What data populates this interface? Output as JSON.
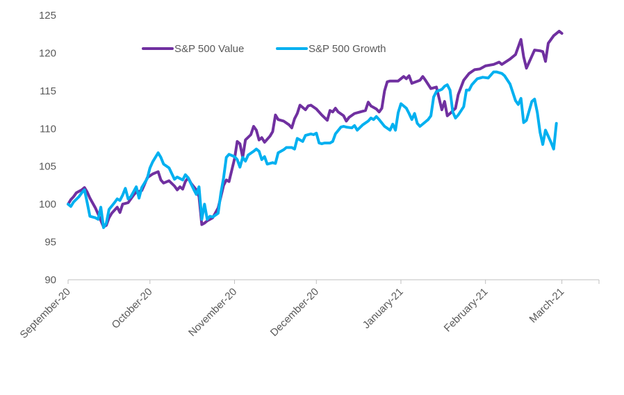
{
  "chart_data": {
    "type": "line",
    "title": "",
    "xlabel": "",
    "ylabel": "",
    "ylim": [
      90,
      125
    ],
    "yticks": [
      90,
      95,
      100,
      105,
      110,
      115,
      120,
      125
    ],
    "grid": false,
    "legend_position": "top-center",
    "x_domain": [
      "2020-09-01",
      "2021-03-09"
    ],
    "xtick_labels": [
      {
        "date": "2020-09-01",
        "label": "September-20"
      },
      {
        "date": "2020-10-01",
        "label": "October-20"
      },
      {
        "date": "2020-11-01",
        "label": "November-20"
      },
      {
        "date": "2020-12-01",
        "label": "December-20"
      },
      {
        "date": "2021-01-01",
        "label": "January-21"
      },
      {
        "date": "2021-02-01",
        "label": "February-21"
      },
      {
        "date": "2021-03-01",
        "label": "March-21"
      }
    ],
    "series": [
      {
        "name": "S&P 500 Value",
        "color": "#7030a0",
        "points": [
          [
            "2020-09-01",
            100
          ],
          [
            "2020-09-02",
            100.6
          ],
          [
            "2020-09-03",
            101.0
          ],
          [
            "2020-09-04",
            101.5
          ],
          [
            "2020-09-06",
            101.9
          ],
          [
            "2020-09-07",
            102.2
          ],
          [
            "2020-09-08",
            101.6
          ],
          [
            "2020-09-09",
            100.8
          ],
          [
            "2020-09-11",
            99.5
          ],
          [
            "2020-09-12",
            98.7
          ],
          [
            "2020-09-14",
            97.0
          ],
          [
            "2020-09-15",
            97.2
          ],
          [
            "2020-09-16",
            98.2
          ],
          [
            "2020-09-17",
            98.8
          ],
          [
            "2020-09-19",
            99.6
          ],
          [
            "2020-09-20",
            98.9
          ],
          [
            "2020-09-21",
            100.0
          ],
          [
            "2020-09-23",
            100.2
          ],
          [
            "2020-09-25",
            101.2
          ],
          [
            "2020-09-26",
            101.6
          ],
          [
            "2020-09-28",
            101.8
          ],
          [
            "2020-09-29",
            102.6
          ],
          [
            "2020-09-30",
            103.5
          ],
          [
            "2020-10-02",
            104.0
          ],
          [
            "2020-10-04",
            104.3
          ],
          [
            "2020-10-05",
            103.2
          ],
          [
            "2020-10-06",
            102.8
          ],
          [
            "2020-10-08",
            103.1
          ],
          [
            "2020-10-10",
            102.4
          ],
          [
            "2020-10-11",
            101.9
          ],
          [
            "2020-10-12",
            102.3
          ],
          [
            "2020-10-13",
            102.0
          ],
          [
            "2020-10-14",
            103.0
          ],
          [
            "2020-10-15",
            103.5
          ],
          [
            "2020-10-16",
            102.8
          ],
          [
            "2020-10-18",
            101.9
          ],
          [
            "2020-10-19",
            101.0
          ],
          [
            "2020-10-20",
            97.3
          ],
          [
            "2020-10-21",
            97.5
          ],
          [
            "2020-10-22",
            97.8
          ],
          [
            "2020-10-24",
            98.2
          ],
          [
            "2020-10-26",
            99.5
          ],
          [
            "2020-10-27",
            101.0
          ],
          [
            "2020-10-28",
            102.5
          ],
          [
            "2020-10-29",
            103.2
          ],
          [
            "2020-10-30",
            103.0
          ],
          [
            "2020-11-01",
            106.0
          ],
          [
            "2020-11-02",
            108.3
          ],
          [
            "2020-11-03",
            108.0
          ],
          [
            "2020-11-04",
            106.2
          ],
          [
            "2020-11-05",
            108.5
          ],
          [
            "2020-11-07",
            109.2
          ],
          [
            "2020-11-08",
            110.3
          ],
          [
            "2020-11-09",
            109.8
          ],
          [
            "2020-11-10",
            108.5
          ],
          [
            "2020-11-11",
            108.8
          ],
          [
            "2020-11-12",
            108.2
          ],
          [
            "2020-11-14",
            109.0
          ],
          [
            "2020-11-15",
            109.6
          ],
          [
            "2020-11-16",
            111.8
          ],
          [
            "2020-11-17",
            111.2
          ],
          [
            "2020-11-19",
            111.0
          ],
          [
            "2020-11-21",
            110.5
          ],
          [
            "2020-11-22",
            110.1
          ],
          [
            "2020-11-23",
            111.3
          ],
          [
            "2020-11-24",
            112.0
          ],
          [
            "2020-11-25",
            113.1
          ],
          [
            "2020-11-27",
            112.5
          ],
          [
            "2020-11-28",
            113.0
          ],
          [
            "2020-11-29",
            113.1
          ],
          [
            "2020-12-01",
            112.6
          ],
          [
            "2020-12-03",
            111.8
          ],
          [
            "2020-12-05",
            111.1
          ],
          [
            "2020-12-06",
            112.4
          ],
          [
            "2020-12-07",
            112.2
          ],
          [
            "2020-12-08",
            112.7
          ],
          [
            "2020-12-09",
            112.2
          ],
          [
            "2020-12-11",
            111.7
          ],
          [
            "2020-12-12",
            111.0
          ],
          [
            "2020-12-13",
            111.5
          ],
          [
            "2020-12-15",
            112.0
          ],
          [
            "2020-12-17",
            112.2
          ],
          [
            "2020-12-19",
            112.4
          ],
          [
            "2020-12-20",
            113.5
          ],
          [
            "2020-12-21",
            113.0
          ],
          [
            "2020-12-23",
            112.6
          ],
          [
            "2020-12-24",
            112.2
          ],
          [
            "2020-12-25",
            112.7
          ],
          [
            "2020-12-26",
            115.0
          ],
          [
            "2020-12-27",
            116.2
          ],
          [
            "2020-12-28",
            116.3
          ],
          [
            "2020-12-31",
            116.3
          ],
          [
            "2021-01-02",
            116.9
          ],
          [
            "2021-01-03",
            116.6
          ],
          [
            "2021-01-04",
            117.0
          ],
          [
            "2021-01-05",
            116.0
          ],
          [
            "2021-01-08",
            116.4
          ],
          [
            "2021-01-09",
            116.9
          ],
          [
            "2021-01-10",
            116.4
          ],
          [
            "2021-01-12",
            115.3
          ],
          [
            "2021-01-14",
            115.5
          ],
          [
            "2021-01-16",
            112.5
          ],
          [
            "2021-01-17",
            113.6
          ],
          [
            "2021-01-18",
            111.7
          ],
          [
            "2021-01-19",
            112.0
          ],
          [
            "2021-01-21",
            112.7
          ],
          [
            "2021-01-22",
            114.5
          ],
          [
            "2021-01-24",
            116.4
          ],
          [
            "2021-01-26",
            117.3
          ],
          [
            "2021-01-28",
            117.8
          ],
          [
            "2021-01-30",
            117.9
          ],
          [
            "2021-02-01",
            118.3
          ],
          [
            "2021-02-04",
            118.5
          ],
          [
            "2021-02-06",
            118.8
          ],
          [
            "2021-02-07",
            118.5
          ],
          [
            "2021-02-10",
            119.2
          ],
          [
            "2021-02-12",
            119.8
          ],
          [
            "2021-02-14",
            121.8
          ],
          [
            "2021-02-15",
            119.5
          ],
          [
            "2021-02-16",
            118.0
          ],
          [
            "2021-02-17",
            118.8
          ],
          [
            "2021-02-19",
            120.4
          ],
          [
            "2021-02-21",
            120.3
          ],
          [
            "2021-02-22",
            120.2
          ],
          [
            "2021-02-23",
            118.9
          ],
          [
            "2021-02-24",
            121.3
          ],
          [
            "2021-02-26",
            122.3
          ],
          [
            "2021-02-28",
            122.9
          ],
          [
            "2021-03-01",
            122.6
          ]
        ]
      },
      {
        "name": "S&P 500 Growth",
        "color": "#00b0f0",
        "points": [
          [
            "2020-09-01",
            100
          ],
          [
            "2020-09-02",
            99.7
          ],
          [
            "2020-09-03",
            100.3
          ],
          [
            "2020-09-05",
            101.0
          ],
          [
            "2020-09-06",
            101.5
          ],
          [
            "2020-09-07",
            101.9
          ],
          [
            "2020-09-08",
            100.2
          ],
          [
            "2020-09-09",
            98.4
          ],
          [
            "2020-09-11",
            98.2
          ],
          [
            "2020-09-12",
            98.0
          ],
          [
            "2020-09-13",
            99.6
          ],
          [
            "2020-09-14",
            96.9
          ],
          [
            "2020-09-15",
            97.5
          ],
          [
            "2020-09-16",
            99.3
          ],
          [
            "2020-09-18",
            100.2
          ],
          [
            "2020-09-19",
            100.7
          ],
          [
            "2020-09-20",
            100.5
          ],
          [
            "2020-09-21",
            101.2
          ],
          [
            "2020-09-22",
            102.1
          ],
          [
            "2020-09-23",
            100.7
          ],
          [
            "2020-09-24",
            101.0
          ],
          [
            "2020-09-26",
            102.3
          ],
          [
            "2020-09-27",
            100.8
          ],
          [
            "2020-09-28",
            102.2
          ],
          [
            "2020-09-30",
            103.4
          ],
          [
            "2020-10-01",
            104.8
          ],
          [
            "2020-10-02",
            105.6
          ],
          [
            "2020-10-04",
            106.8
          ],
          [
            "2020-10-05",
            106.2
          ],
          [
            "2020-10-06",
            105.3
          ],
          [
            "2020-10-08",
            104.8
          ],
          [
            "2020-10-10",
            103.3
          ],
          [
            "2020-10-11",
            103.6
          ],
          [
            "2020-10-13",
            103.2
          ],
          [
            "2020-10-14",
            103.9
          ],
          [
            "2020-10-15",
            103.5
          ],
          [
            "2020-10-17",
            102.0
          ],
          [
            "2020-10-18",
            101.3
          ],
          [
            "2020-10-19",
            102.3
          ],
          [
            "2020-10-20",
            98.0
          ],
          [
            "2020-10-21",
            100.0
          ],
          [
            "2020-10-22",
            98.0
          ],
          [
            "2020-10-23",
            98.4
          ],
          [
            "2020-10-24",
            98.3
          ],
          [
            "2020-10-26",
            98.8
          ],
          [
            "2020-10-27",
            101.5
          ],
          [
            "2020-10-28",
            103.5
          ],
          [
            "2020-10-29",
            106.2
          ],
          [
            "2020-10-30",
            106.6
          ],
          [
            "2020-11-01",
            106.3
          ],
          [
            "2020-11-02",
            105.9
          ],
          [
            "2020-11-03",
            104.9
          ],
          [
            "2020-11-04",
            106.2
          ],
          [
            "2020-11-05",
            105.7
          ],
          [
            "2020-11-06",
            106.5
          ],
          [
            "2020-11-08",
            107.0
          ],
          [
            "2020-11-09",
            107.3
          ],
          [
            "2020-11-10",
            107.0
          ],
          [
            "2020-11-11",
            105.9
          ],
          [
            "2020-11-12",
            106.3
          ],
          [
            "2020-11-13",
            105.3
          ],
          [
            "2020-11-15",
            105.5
          ],
          [
            "2020-11-16",
            105.4
          ],
          [
            "2020-11-17",
            106.8
          ],
          [
            "2020-11-19",
            107.2
          ],
          [
            "2020-11-20",
            107.5
          ],
          [
            "2020-11-22",
            107.5
          ],
          [
            "2020-11-23",
            107.3
          ],
          [
            "2020-11-24",
            108.7
          ],
          [
            "2020-11-26",
            108.3
          ],
          [
            "2020-11-27",
            109.1
          ],
          [
            "2020-11-29",
            109.3
          ],
          [
            "2020-11-30",
            109.2
          ],
          [
            "2020-12-01",
            109.4
          ],
          [
            "2020-12-02",
            108.1
          ],
          [
            "2020-12-03",
            108.0
          ],
          [
            "2020-12-04",
            108.1
          ],
          [
            "2020-12-06",
            108.1
          ],
          [
            "2020-12-07",
            108.3
          ],
          [
            "2020-12-08",
            109.3
          ],
          [
            "2020-12-10",
            110.2
          ],
          [
            "2020-12-11",
            110.3
          ],
          [
            "2020-12-12",
            110.2
          ],
          [
            "2020-12-14",
            110.1
          ],
          [
            "2020-12-15",
            110.4
          ],
          [
            "2020-12-16",
            109.8
          ],
          [
            "2020-12-18",
            110.5
          ],
          [
            "2020-12-20",
            111.0
          ],
          [
            "2020-12-21",
            111.4
          ],
          [
            "2020-12-22",
            111.2
          ],
          [
            "2020-12-23",
            111.6
          ],
          [
            "2020-12-24",
            111.2
          ],
          [
            "2020-12-26",
            110.3
          ],
          [
            "2020-12-28",
            109.8
          ],
          [
            "2020-12-29",
            110.6
          ],
          [
            "2020-12-30",
            109.8
          ],
          [
            "2020-12-31",
            112.1
          ],
          [
            "2021-01-01",
            113.3
          ],
          [
            "2021-01-03",
            112.7
          ],
          [
            "2021-01-04",
            112.0
          ],
          [
            "2021-01-05",
            111.2
          ],
          [
            "2021-01-06",
            112.0
          ],
          [
            "2021-01-07",
            110.7
          ],
          [
            "2021-01-08",
            110.3
          ],
          [
            "2021-01-10",
            110.9
          ],
          [
            "2021-01-11",
            111.2
          ],
          [
            "2021-01-12",
            111.7
          ],
          [
            "2021-01-13",
            114.2
          ],
          [
            "2021-01-14",
            114.9
          ],
          [
            "2021-01-16",
            115.2
          ],
          [
            "2021-01-17",
            115.6
          ],
          [
            "2021-01-18",
            115.8
          ],
          [
            "2021-01-19",
            115.1
          ],
          [
            "2021-01-20",
            112.2
          ],
          [
            "2021-01-21",
            111.4
          ],
          [
            "2021-01-22",
            111.8
          ],
          [
            "2021-01-24",
            112.9
          ],
          [
            "2021-01-25",
            115.1
          ],
          [
            "2021-01-26",
            115.1
          ],
          [
            "2021-01-27",
            115.8
          ],
          [
            "2021-01-29",
            116.6
          ],
          [
            "2021-01-31",
            116.8
          ],
          [
            "2021-02-02",
            116.7
          ],
          [
            "2021-02-04",
            117.5
          ],
          [
            "2021-02-05",
            117.5
          ],
          [
            "2021-02-07",
            117.3
          ],
          [
            "2021-02-08",
            117.0
          ],
          [
            "2021-02-10",
            115.9
          ],
          [
            "2021-02-12",
            113.7
          ],
          [
            "2021-02-13",
            113.2
          ],
          [
            "2021-02-14",
            114.0
          ],
          [
            "2021-02-15",
            110.8
          ],
          [
            "2021-02-16",
            111.1
          ],
          [
            "2021-02-18",
            113.6
          ],
          [
            "2021-02-19",
            113.9
          ],
          [
            "2021-02-20",
            112.1
          ],
          [
            "2021-02-21",
            109.5
          ],
          [
            "2021-02-22",
            107.9
          ],
          [
            "2021-02-23",
            109.8
          ],
          [
            "2021-02-24",
            109.0
          ],
          [
            "2021-02-25",
            108.2
          ],
          [
            "2021-02-26",
            107.3
          ],
          [
            "2021-02-27",
            110.7
          ]
        ]
      }
    ]
  }
}
